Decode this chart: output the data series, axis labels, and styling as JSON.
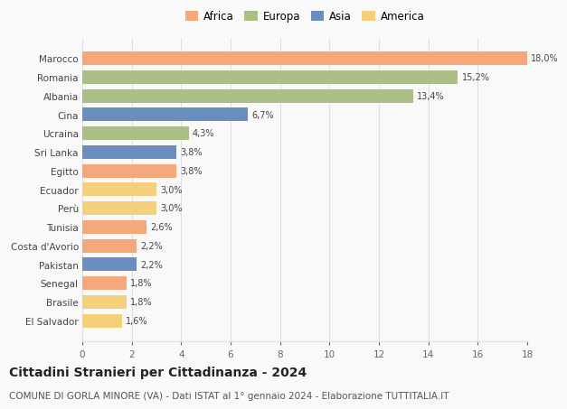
{
  "countries": [
    "Marocco",
    "Romania",
    "Albania",
    "Cina",
    "Ucraina",
    "Sri Lanka",
    "Egitto",
    "Ecuador",
    "Perù",
    "Tunisia",
    "Costa d'Avorio",
    "Pakistan",
    "Senegal",
    "Brasile",
    "El Salvador"
  ],
  "values": [
    18.0,
    15.2,
    13.4,
    6.7,
    4.3,
    3.8,
    3.8,
    3.0,
    3.0,
    2.6,
    2.2,
    2.2,
    1.8,
    1.8,
    1.6
  ],
  "labels": [
    "18,0%",
    "15,2%",
    "13,4%",
    "6,7%",
    "4,3%",
    "3,8%",
    "3,8%",
    "3,0%",
    "3,0%",
    "2,6%",
    "2,2%",
    "2,2%",
    "1,8%",
    "1,8%",
    "1,6%"
  ],
  "continents": [
    "Africa",
    "Europa",
    "Europa",
    "Asia",
    "Europa",
    "Asia",
    "Africa",
    "America",
    "America",
    "Africa",
    "Africa",
    "Asia",
    "Africa",
    "America",
    "America"
  ],
  "continent_colors": {
    "Africa": "#F5A97A",
    "Europa": "#AABF85",
    "Asia": "#6A8EBF",
    "America": "#F5D07A"
  },
  "legend_order": [
    "Africa",
    "Europa",
    "Asia",
    "America"
  ],
  "title": "Cittadini Stranieri per Cittadinanza - 2024",
  "subtitle": "COMUNE DI GORLA MINORE (VA) - Dati ISTAT al 1° gennaio 2024 - Elaborazione TUTTITALIA.IT",
  "xlim": [
    0,
    18
  ],
  "xticks": [
    0,
    2,
    4,
    6,
    8,
    10,
    12,
    14,
    16,
    18
  ],
  "background_color": "#f9f9f9",
  "grid_color": "#e0e0e0",
  "title_fontsize": 10,
  "subtitle_fontsize": 7.5,
  "label_fontsize": 7,
  "tick_fontsize": 7.5,
  "legend_fontsize": 8.5,
  "bar_height": 0.72
}
